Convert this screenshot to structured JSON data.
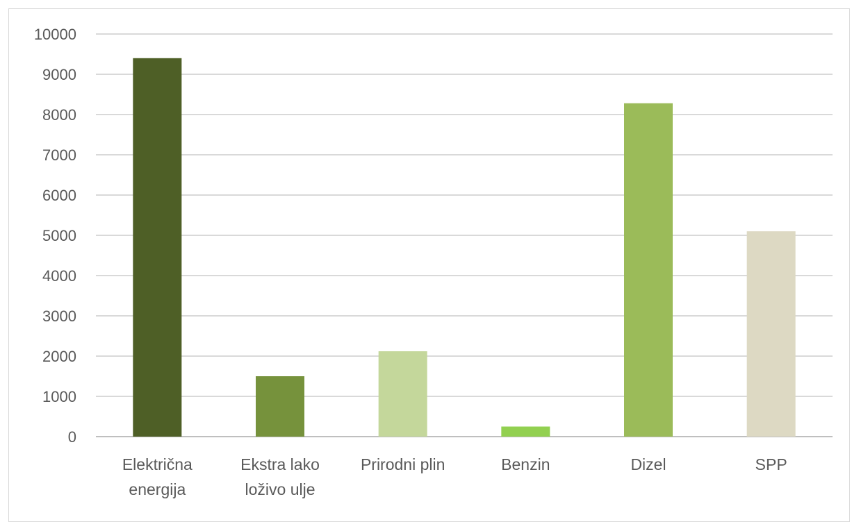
{
  "chart_data": {
    "type": "bar",
    "categories": [
      [
        "Električna",
        "energija"
      ],
      [
        "Ekstra lako",
        "loživo ulje"
      ],
      [
        "Prirodni plin"
      ],
      [
        "Benzin"
      ],
      [
        "Dizel"
      ],
      [
        "SPP"
      ]
    ],
    "values": [
      9400,
      1500,
      2120,
      250,
      8280,
      5100
    ],
    "bar_colors": [
      "#4e5f26",
      "#76923c",
      "#c4d79b",
      "#92d050",
      "#9bbb59",
      "#ddd9c3"
    ],
    "ylim": [
      0,
      10000
    ],
    "yticks": [
      0,
      1000,
      2000,
      3000,
      4000,
      5000,
      6000,
      7000,
      8000,
      9000,
      10000
    ],
    "grid": true,
    "legend": "none",
    "colors": {
      "grid": "#d9d9d9",
      "axis": "#bfbfbf",
      "text": "#595959"
    }
  }
}
